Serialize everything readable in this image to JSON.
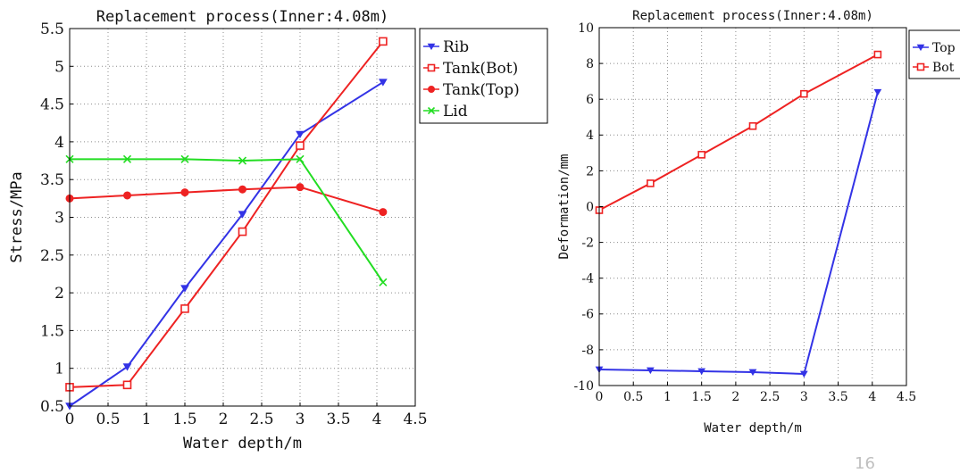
{
  "page_number": "16",
  "chart_data": [
    {
      "type": "line",
      "title": "Replacement process(Inner:4.08m)",
      "xlabel": "Water depth/m",
      "ylabel": "Stress/MPa",
      "xlim": [
        0,
        4.5
      ],
      "ylim": [
        0.5,
        5.5
      ],
      "xticks": [
        "0",
        "0.5",
        "1",
        "1.5",
        "2",
        "2.5",
        "3",
        "3.5",
        "4",
        "4.5"
      ],
      "yticks": [
        "0.5",
        "1",
        "1.5",
        "2",
        "2.5",
        "3",
        "3.5",
        "4",
        "4.5",
        "5",
        "5.5"
      ],
      "grid": true,
      "legend_position": "outside-right-top",
      "x": [
        0,
        0.75,
        1.5,
        2.25,
        3.0,
        4.08
      ],
      "series": [
        {
          "name": "Rib",
          "color": "#3333e6",
          "marker": "triangle-down",
          "values": [
            0.5,
            1.02,
            2.06,
            3.04,
            4.1,
            4.79
          ]
        },
        {
          "name": "Tank(Bot)",
          "color": "#ee2222",
          "marker": "square",
          "values": [
            0.75,
            0.78,
            1.79,
            2.81,
            3.95,
            5.33
          ]
        },
        {
          "name": "Tank(Top)",
          "color": "#ee2222",
          "marker": "circle",
          "values": [
            3.25,
            3.29,
            3.33,
            3.37,
            3.4,
            3.07
          ]
        },
        {
          "name": "Lid",
          "color": "#22dd22",
          "marker": "x",
          "values": [
            3.77,
            3.77,
            3.77,
            3.75,
            3.77,
            2.14
          ]
        }
      ]
    },
    {
      "type": "line",
      "title": "Replacement process(Inner:4.08m)",
      "xlabel": "Water depth/m",
      "ylabel": "Deformation/mm",
      "xlim": [
        0,
        4.5
      ],
      "ylim": [
        -10,
        10
      ],
      "xticks": [
        "0",
        "0.5",
        "1",
        "1.5",
        "2",
        "2.5",
        "3",
        "3.5",
        "4",
        "4.5"
      ],
      "yticks": [
        "-10",
        "-8",
        "-6",
        "-4",
        "-2",
        "0",
        "2",
        "4",
        "6",
        "8",
        "10"
      ],
      "grid": true,
      "legend_position": "outside-right-top",
      "x": [
        0,
        0.75,
        1.5,
        2.25,
        3.0,
        4.08
      ],
      "series": [
        {
          "name": "Top",
          "color": "#3333e6",
          "marker": "triangle-down",
          "values": [
            -9.1,
            -9.15,
            -9.2,
            -9.25,
            -9.35,
            6.4
          ]
        },
        {
          "name": "Bot",
          "color": "#ee2222",
          "marker": "square",
          "values": [
            -0.2,
            1.3,
            2.9,
            4.5,
            6.3,
            8.5
          ]
        }
      ]
    }
  ]
}
